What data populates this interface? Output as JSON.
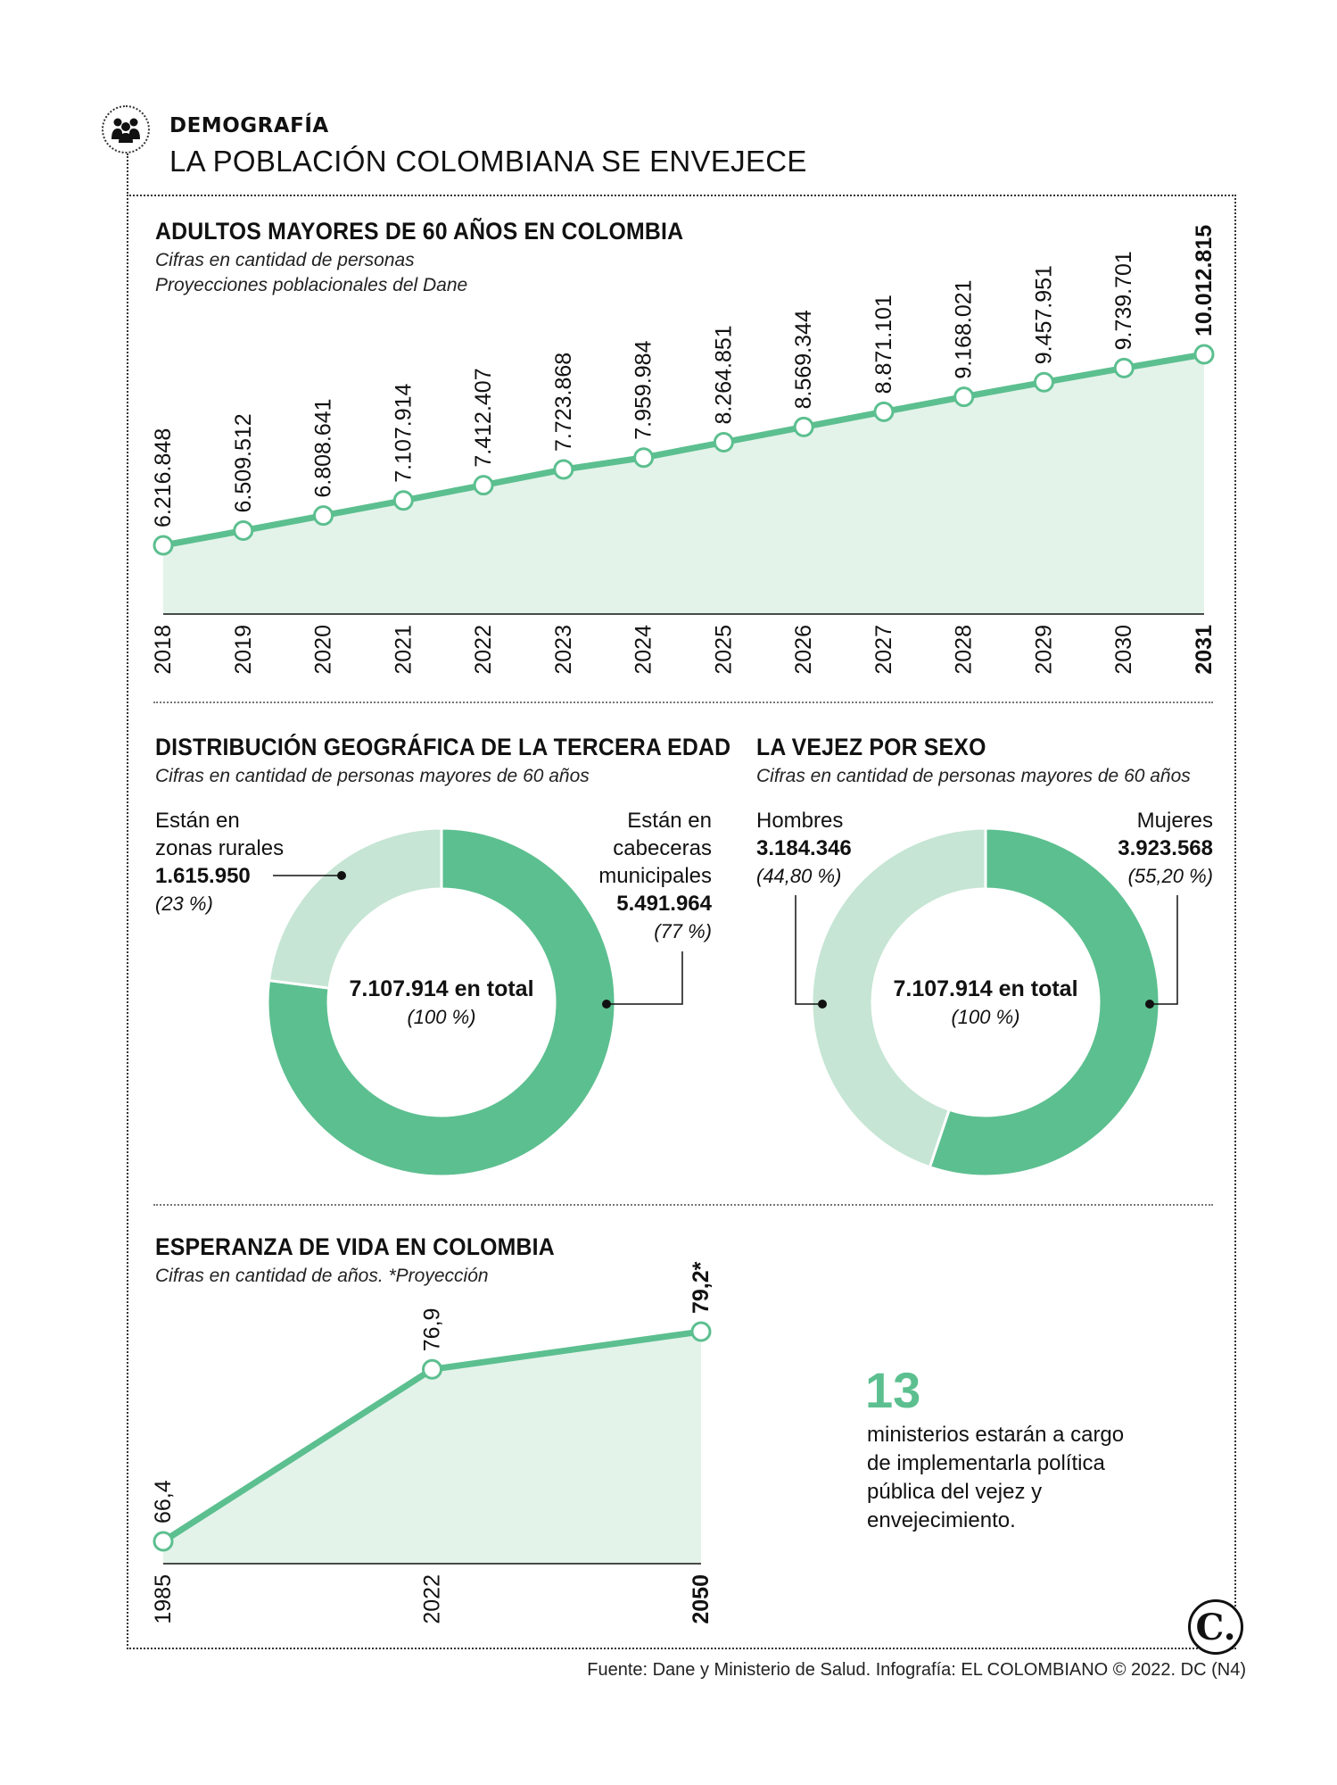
{
  "header": {
    "topic": "DEMOGRAFÍA",
    "headline": "LA POBLACIÓN COLOMBIANA SE ENVEJECE"
  },
  "section1": {
    "title": "ADULTOS MAYORES DE 60 AÑOS EN COLOMBIA",
    "subtitle1": "Cifras en cantidad de personas",
    "subtitle2": "Proyecciones poblacionales del Dane"
  },
  "section2": {
    "title": "DISTRIBUCIÓN GEOGRÁFICA DE LA TERCERA EDAD",
    "subtitle": "Cifras en cantidad de personas mayores de 60 años",
    "rural_label_1": "Están en",
    "rural_label_2": "zonas rurales",
    "rural_value": "1.615.950",
    "rural_pct": "(23 %)",
    "urban_label_1": "Están en",
    "urban_label_2": "cabeceras",
    "urban_label_3": "municipales",
    "urban_value": "5.491.964",
    "urban_pct": "(77 %)",
    "center_value": "7.107.914 en total",
    "center_pct": "(100 %)"
  },
  "section3": {
    "title": "LA VEJEZ POR SEXO",
    "subtitle": "Cifras en cantidad de personas mayores de 60 años",
    "men_label": "Hombres",
    "men_value": "3.184.346",
    "men_pct": "(44,80 %)",
    "women_label": "Mujeres",
    "women_value": "3.923.568",
    "women_pct": "(55,20 %)",
    "center_value": "7.107.914 en total",
    "center_pct": "(100 %)"
  },
  "section4": {
    "title": "ESPERANZA DE VIDA EN COLOMBIA",
    "subtitle": "Cifras en cantidad de años. *Proyección"
  },
  "callout": {
    "number": "13",
    "text": "ministerios estarán a cargo de implementarla política pública del vejez y envejecimiento."
  },
  "footer": {
    "source": "Fuente: Dane y Ministerio de Salud. Infografía: EL COLOMBIANO © 2022. DC (N4)",
    "logo_letter": "C."
  },
  "colors": {
    "accent": "#5cbf8f",
    "accent_light": "#c6e5d4",
    "area_fill": "#e3f3ea"
  },
  "icons": [
    "people-group-icon",
    "el-colombiano-logo"
  ],
  "chart_data": [
    {
      "type": "area",
      "title": "ADULTOS MAYORES DE 60 AÑOS EN COLOMBIA",
      "x": [
        "2018",
        "2019",
        "2020",
        "2021",
        "2022",
        "2023",
        "2024",
        "2025",
        "2026",
        "2027",
        "2028",
        "2029",
        "2030",
        "2031"
      ],
      "values": [
        6216848,
        6509512,
        6808641,
        7107914,
        7412407,
        7723868,
        7959984,
        8264851,
        8569344,
        8871101,
        9168021,
        9457951,
        9739701,
        10012815
      ],
      "value_labels": [
        "6.216.848",
        "6.509.512",
        "6.808.641",
        "7.107.914",
        "7.412.407",
        "7.723.868",
        "7.959.984",
        "8.264.851",
        "8.569.344",
        "8.871.101",
        "9.168.021",
        "9.457.951",
        "9.739.701",
        "10.012.815"
      ],
      "highlight_last": true
    },
    {
      "type": "pie",
      "title": "DISTRIBUCIÓN GEOGRÁFICA DE LA TERCERA EDAD",
      "slices": [
        {
          "label": "Están en cabeceras municipales",
          "value": 5491964,
          "pct": 77
        },
        {
          "label": "Están en zonas rurales",
          "value": 1615950,
          "pct": 23
        }
      ],
      "total": 7107914
    },
    {
      "type": "pie",
      "title": "LA VEJEZ POR SEXO",
      "slices": [
        {
          "label": "Mujeres",
          "value": 3923568,
          "pct": 55.2
        },
        {
          "label": "Hombres",
          "value": 3184346,
          "pct": 44.8
        }
      ],
      "total": 7107914
    },
    {
      "type": "area",
      "title": "ESPERANZA DE VIDA EN COLOMBIA",
      "x": [
        "1985",
        "2022",
        "2050"
      ],
      "values": [
        66.4,
        76.9,
        79.2
      ],
      "value_labels": [
        "66,4",
        "76,9",
        "79,2*"
      ],
      "highlight_last": true
    }
  ]
}
